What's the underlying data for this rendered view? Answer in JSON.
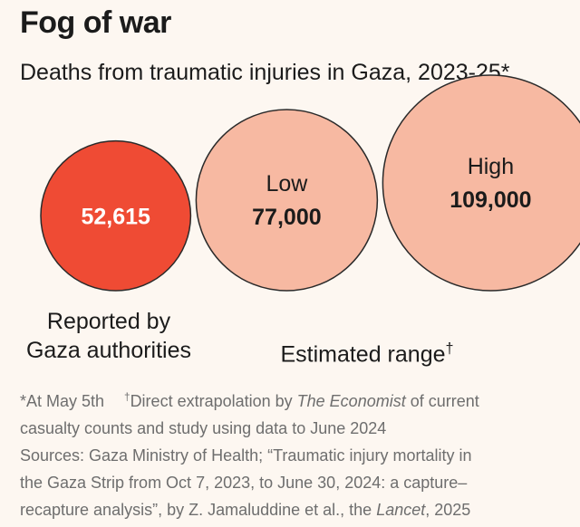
{
  "title": "Fog of war",
  "subtitle": "Deaths from traumatic injuries in Gaza, 2023-25*",
  "chart_data": {
    "type": "bubble",
    "title": "Fog of war",
    "subtitle": "Deaths from traumatic injuries in Gaza, 2023-25*",
    "series": [
      {
        "name": "Reported by Gaza authorities",
        "points": [
          {
            "label": "",
            "value": 52615,
            "display": "52,615",
            "color": "#ef4b34"
          }
        ]
      },
      {
        "name": "Estimated range†",
        "points": [
          {
            "label": "Low",
            "value": 77000,
            "display": "77,000",
            "color": "#f7b9a2"
          },
          {
            "label": "High",
            "value": 109000,
            "display": "109,000",
            "color": "#f7b9a2"
          }
        ]
      }
    ],
    "categories": {
      "reported_line1": "Reported by",
      "reported_line2": "Gaza authorities",
      "range": "Estimated range",
      "range_mark": "†"
    }
  },
  "notes": {
    "line1_a": "*At May 5th",
    "line1_b_mark": "†",
    "line1_b": "Direct extrapolation by ",
    "line1_b_em": "The Economist",
    "line1_b_end": " of current",
    "line2": "casualty counts and study using data to June 2024",
    "line3": "Sources: Gaza Ministry of Health; “Traumatic injury mortality in",
    "line4": "the Gaza Strip from Oct 7, 2023, to June 30, 2024: a capture–",
    "line5_a": "recapture analysis”, by Z. Jamaluddine et al., the ",
    "line5_em": "Lancet",
    "line5_end": ", 2025"
  },
  "colors": {
    "reported": "#ef4b34",
    "estimated": "#f7b9a2",
    "stroke": "#2a2a2a",
    "notes": "#6e6e6e",
    "background": "#fdf7f1"
  }
}
